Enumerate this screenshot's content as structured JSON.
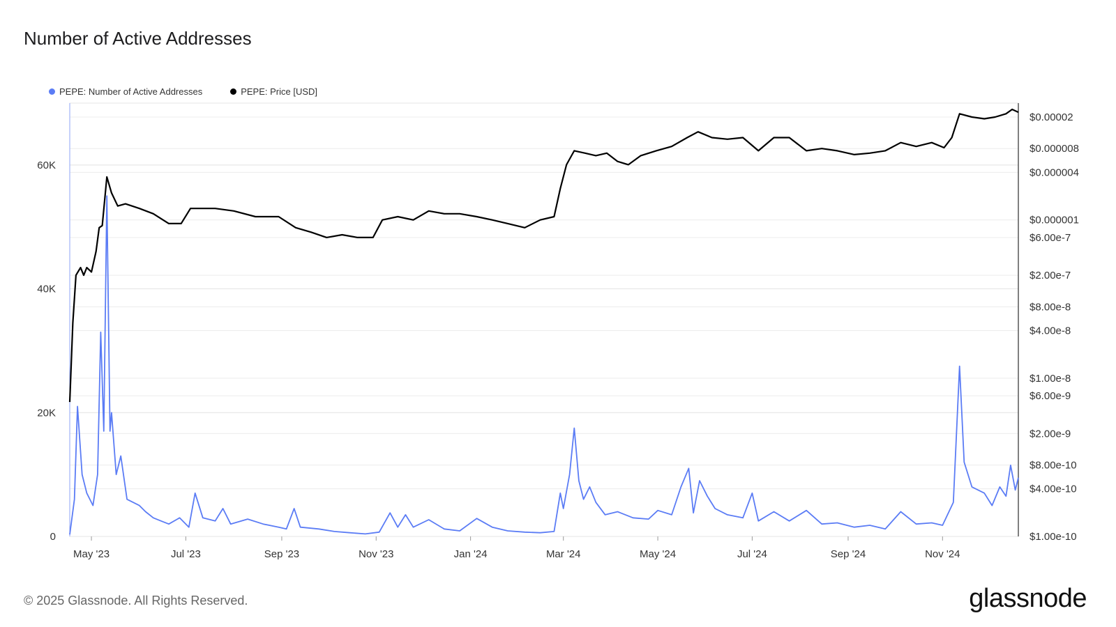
{
  "chart_data": {
    "type": "line",
    "title": "Number of Active Addresses",
    "legend_placement": "top-left",
    "grid": true,
    "x_range": [
      "2023-04-17",
      "2024-12-20"
    ],
    "x_ticks": [
      "May '23",
      "Jul '23",
      "Sep '23",
      "Nov '23",
      "Jan '24",
      "Mar '24",
      "May '24",
      "Jul '24",
      "Sep '24",
      "Nov '24"
    ],
    "y_left": {
      "ylim": [
        0,
        70000
      ],
      "ticks": [
        "0",
        "20K",
        "40K",
        "60K"
      ]
    },
    "y_right": {
      "scale": "log",
      "ylim": [
        1e-10,
        3e-05
      ],
      "ticks": [
        "$1.00e-10",
        "$4.00e-10",
        "$8.00e-10",
        "$2.00e-9",
        "$6.00e-9",
        "$1.00e-8",
        "$4.00e-8",
        "$8.00e-8",
        "$2.00e-7",
        "$6.00e-7",
        "$0.000001",
        "$0.000004",
        "$0.000008",
        "$0.00002"
      ]
    },
    "series": [
      {
        "name": "PEPE: Number of Active Addresses",
        "color": "#5b7cf5",
        "axis": "left",
        "points": [
          [
            "2023-04-17",
            300
          ],
          [
            "2023-04-20",
            6000
          ],
          [
            "2023-04-22",
            21000
          ],
          [
            "2023-04-25",
            10000
          ],
          [
            "2023-04-28",
            7000
          ],
          [
            "2023-05-02",
            5000
          ],
          [
            "2023-05-05",
            10000
          ],
          [
            "2023-05-07",
            33000
          ],
          [
            "2023-05-09",
            17000
          ],
          [
            "2023-05-11",
            55000
          ],
          [
            "2023-05-13",
            17000
          ],
          [
            "2023-05-14",
            20000
          ],
          [
            "2023-05-17",
            10000
          ],
          [
            "2023-05-20",
            13000
          ],
          [
            "2023-05-24",
            6000
          ],
          [
            "2023-06-01",
            5000
          ],
          [
            "2023-06-05",
            4000
          ],
          [
            "2023-06-10",
            3000
          ],
          [
            "2023-06-15",
            2500
          ],
          [
            "2023-06-20",
            2000
          ],
          [
            "2023-06-27",
            3000
          ],
          [
            "2023-07-03",
            1500
          ],
          [
            "2023-07-07",
            7000
          ],
          [
            "2023-07-12",
            3000
          ],
          [
            "2023-07-20",
            2500
          ],
          [
            "2023-07-25",
            4500
          ],
          [
            "2023-07-30",
            2000
          ],
          [
            "2023-08-10",
            2800
          ],
          [
            "2023-08-20",
            2000
          ],
          [
            "2023-08-30",
            1500
          ],
          [
            "2023-09-04",
            1200
          ],
          [
            "2023-09-09",
            4500
          ],
          [
            "2023-09-13",
            1500
          ],
          [
            "2023-09-25",
            1200
          ],
          [
            "2023-10-05",
            800
          ],
          [
            "2023-10-15",
            600
          ],
          [
            "2023-10-25",
            400
          ],
          [
            "2023-11-03",
            700
          ],
          [
            "2023-11-10",
            3800
          ],
          [
            "2023-11-15",
            1500
          ],
          [
            "2023-11-20",
            3500
          ],
          [
            "2023-11-25",
            1500
          ],
          [
            "2023-12-05",
            2700
          ],
          [
            "2023-12-15",
            1200
          ],
          [
            "2023-12-25",
            900
          ],
          [
            "2024-01-05",
            2900
          ],
          [
            "2024-01-15",
            1500
          ],
          [
            "2024-01-25",
            900
          ],
          [
            "2024-02-05",
            700
          ],
          [
            "2024-02-15",
            600
          ],
          [
            "2024-02-24",
            800
          ],
          [
            "2024-02-28",
            7000
          ],
          [
            "2024-03-01",
            4500
          ],
          [
            "2024-03-05",
            10000
          ],
          [
            "2024-03-08",
            17500
          ],
          [
            "2024-03-11",
            9000
          ],
          [
            "2024-03-14",
            6000
          ],
          [
            "2024-03-18",
            8000
          ],
          [
            "2024-03-22",
            5500
          ],
          [
            "2024-03-28",
            3500
          ],
          [
            "2024-04-05",
            4000
          ],
          [
            "2024-04-15",
            3000
          ],
          [
            "2024-04-25",
            2800
          ],
          [
            "2024-05-01",
            4200
          ],
          [
            "2024-05-10",
            3500
          ],
          [
            "2024-05-16",
            8000
          ],
          [
            "2024-05-21",
            11000
          ],
          [
            "2024-05-24",
            3800
          ],
          [
            "2024-05-28",
            9000
          ],
          [
            "2024-06-02",
            6500
          ],
          [
            "2024-06-07",
            4500
          ],
          [
            "2024-06-15",
            3500
          ],
          [
            "2024-06-25",
            3000
          ],
          [
            "2024-07-01",
            7000
          ],
          [
            "2024-07-05",
            2500
          ],
          [
            "2024-07-15",
            4000
          ],
          [
            "2024-07-25",
            2500
          ],
          [
            "2024-08-05",
            4200
          ],
          [
            "2024-08-15",
            2000
          ],
          [
            "2024-08-25",
            2200
          ],
          [
            "2024-09-05",
            1500
          ],
          [
            "2024-09-15",
            1800
          ],
          [
            "2024-09-25",
            1200
          ],
          [
            "2024-10-05",
            4000
          ],
          [
            "2024-10-15",
            2000
          ],
          [
            "2024-10-25",
            2200
          ],
          [
            "2024-11-01",
            1800
          ],
          [
            "2024-11-08",
            5500
          ],
          [
            "2024-11-12",
            27500
          ],
          [
            "2024-11-15",
            12000
          ],
          [
            "2024-11-20",
            8000
          ],
          [
            "2024-11-28",
            7000
          ],
          [
            "2024-12-03",
            5000
          ],
          [
            "2024-12-08",
            8000
          ],
          [
            "2024-12-12",
            6500
          ],
          [
            "2024-12-15",
            11500
          ],
          [
            "2024-12-18",
            7500
          ],
          [
            "2024-12-20",
            9500
          ]
        ]
      },
      {
        "name": "PEPE: Price [USD]",
        "color": "#000000",
        "axis": "right",
        "points": [
          [
            "2023-04-17",
            5e-09
          ],
          [
            "2023-04-19",
            5e-08
          ],
          [
            "2023-04-21",
            2e-07
          ],
          [
            "2023-04-24",
            2.5e-07
          ],
          [
            "2023-04-26",
            2e-07
          ],
          [
            "2023-04-28",
            2.5e-07
          ],
          [
            "2023-05-01",
            2.2e-07
          ],
          [
            "2023-05-04",
            4e-07
          ],
          [
            "2023-05-06",
            8e-07
          ],
          [
            "2023-05-08",
            8.5e-07
          ],
          [
            "2023-05-11",
            3.5e-06
          ],
          [
            "2023-05-14",
            2.2e-06
          ],
          [
            "2023-05-18",
            1.5e-06
          ],
          [
            "2023-05-23",
            1.6e-06
          ],
          [
            "2023-06-01",
            1.4e-06
          ],
          [
            "2023-06-10",
            1.2e-06
          ],
          [
            "2023-06-20",
            9e-07
          ],
          [
            "2023-06-28",
            9e-07
          ],
          [
            "2023-07-04",
            1.4e-06
          ],
          [
            "2023-07-10",
            1.4e-06
          ],
          [
            "2023-07-20",
            1.4e-06
          ],
          [
            "2023-08-01",
            1.3e-06
          ],
          [
            "2023-08-15",
            1.1e-06
          ],
          [
            "2023-08-30",
            1.1e-06
          ],
          [
            "2023-09-10",
            8e-07
          ],
          [
            "2023-09-20",
            7e-07
          ],
          [
            "2023-09-30",
            6e-07
          ],
          [
            "2023-10-10",
            6.5e-07
          ],
          [
            "2023-10-20",
            6e-07
          ],
          [
            "2023-10-30",
            6e-07
          ],
          [
            "2023-11-05",
            1e-06
          ],
          [
            "2023-11-15",
            1.1e-06
          ],
          [
            "2023-11-25",
            1e-06
          ],
          [
            "2023-12-05",
            1.3e-06
          ],
          [
            "2023-12-15",
            1.2e-06
          ],
          [
            "2023-12-25",
            1.2e-06
          ],
          [
            "2024-01-05",
            1.1e-06
          ],
          [
            "2024-01-15",
            1e-06
          ],
          [
            "2024-01-25",
            9e-07
          ],
          [
            "2024-02-05",
            8e-07
          ],
          [
            "2024-02-15",
            1e-06
          ],
          [
            "2024-02-24",
            1.1e-06
          ],
          [
            "2024-02-28",
            2.5e-06
          ],
          [
            "2024-03-03",
            5e-06
          ],
          [
            "2024-03-08",
            7.5e-06
          ],
          [
            "2024-03-15",
            7e-06
          ],
          [
            "2024-03-22",
            6.5e-06
          ],
          [
            "2024-03-29",
            7e-06
          ],
          [
            "2024-04-05",
            5.5e-06
          ],
          [
            "2024-04-12",
            5e-06
          ],
          [
            "2024-04-20",
            6.5e-06
          ],
          [
            "2024-04-30",
            7.5e-06
          ],
          [
            "2024-05-10",
            8.5e-06
          ],
          [
            "2024-05-20",
            1.1e-05
          ],
          [
            "2024-05-27",
            1.3e-05
          ],
          [
            "2024-06-05",
            1.1e-05
          ],
          [
            "2024-06-15",
            1.05e-05
          ],
          [
            "2024-06-25",
            1.1e-05
          ],
          [
            "2024-07-05",
            7.5e-06
          ],
          [
            "2024-07-15",
            1.1e-05
          ],
          [
            "2024-07-25",
            1.1e-05
          ],
          [
            "2024-08-05",
            7.5e-06
          ],
          [
            "2024-08-15",
            8e-06
          ],
          [
            "2024-08-25",
            7.5e-06
          ],
          [
            "2024-09-05",
            6.7e-06
          ],
          [
            "2024-09-15",
            7e-06
          ],
          [
            "2024-09-25",
            7.5e-06
          ],
          [
            "2024-10-05",
            9.5e-06
          ],
          [
            "2024-10-15",
            8.5e-06
          ],
          [
            "2024-10-25",
            9.5e-06
          ],
          [
            "2024-11-02",
            8.2e-06
          ],
          [
            "2024-11-07",
            1.1e-05
          ],
          [
            "2024-11-12",
            2.2e-05
          ],
          [
            "2024-11-20",
            2e-05
          ],
          [
            "2024-11-28",
            1.9e-05
          ],
          [
            "2024-12-05",
            2e-05
          ],
          [
            "2024-12-12",
            2.2e-05
          ],
          [
            "2024-12-16",
            2.5e-05
          ],
          [
            "2024-12-20",
            2.3e-05
          ]
        ]
      }
    ]
  },
  "footer": {
    "copyright": "© 2025 Glassnode. All Rights Reserved.",
    "brand": "glassnode"
  }
}
